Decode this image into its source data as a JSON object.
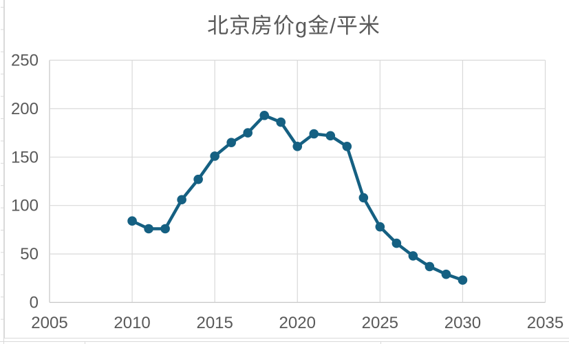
{
  "chart_data": {
    "type": "line",
    "title": "北京房价g金/平米",
    "x": [
      2010,
      2011,
      2012,
      2013,
      2014,
      2015,
      2016,
      2017,
      2018,
      2019,
      2020,
      2021,
      2022,
      2023,
      2024,
      2025,
      2026,
      2027,
      2028,
      2029,
      2030
    ],
    "values": [
      84,
      76,
      76,
      106,
      127,
      151,
      165,
      175,
      193,
      186,
      161,
      174,
      172,
      161,
      108,
      78,
      61,
      48,
      37,
      29,
      23
    ],
    "xlabel": "",
    "ylabel": "",
    "xlim": [
      2005,
      2035
    ],
    "ylim": [
      0,
      250
    ],
    "x_ticks": [
      2005,
      2010,
      2015,
      2020,
      2025,
      2030,
      2035
    ],
    "y_ticks": [
      0,
      50,
      100,
      150,
      200,
      250
    ],
    "grid": "on",
    "legend": "none",
    "marker": "circle",
    "series_color": "#156082",
    "gridline_color": "#D9D9D9",
    "axis_line_color": "#C6C6C6",
    "label_color": "#595959",
    "title_color": "#595959",
    "chart_border_color": "#D9D9D9",
    "sheet_gridline_color": "#D9D9D9"
  }
}
